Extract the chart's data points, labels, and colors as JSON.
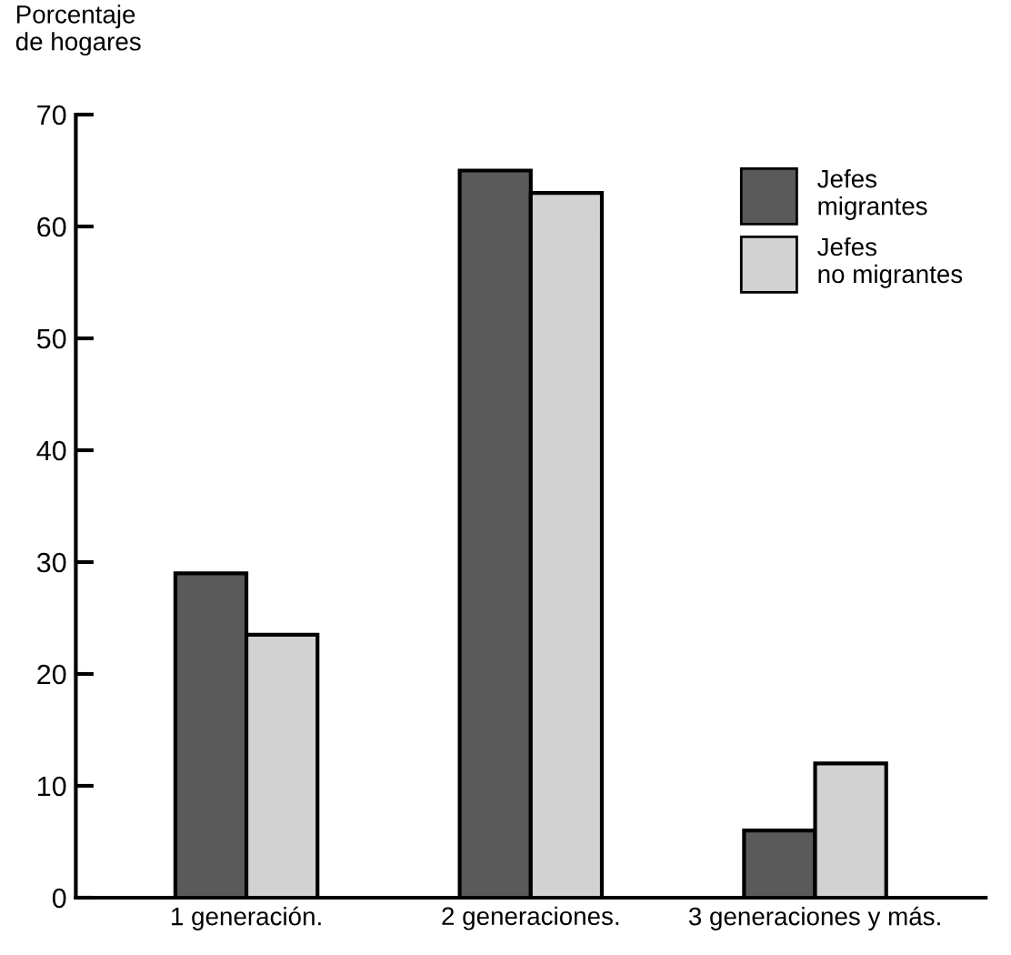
{
  "chart_data": {
    "type": "bar",
    "ylabel": "Porcentaje\nde hogares",
    "categories": [
      "1 generación.",
      "2 generaciones.",
      "3 generaciones y más."
    ],
    "series": [
      {
        "name": "Jefes\nmigrantes",
        "color": "#5a5a5a",
        "values": [
          29,
          65,
          6
        ]
      },
      {
        "name": "Jefes\nno migrantes",
        "color": "#d2d2d2",
        "values": [
          23.5,
          63,
          12
        ]
      }
    ],
    "ylim": [
      0,
      70
    ],
    "yticks": [
      0,
      10,
      20,
      30,
      40,
      50,
      60,
      70
    ],
    "grid": false,
    "legend": "top right"
  }
}
